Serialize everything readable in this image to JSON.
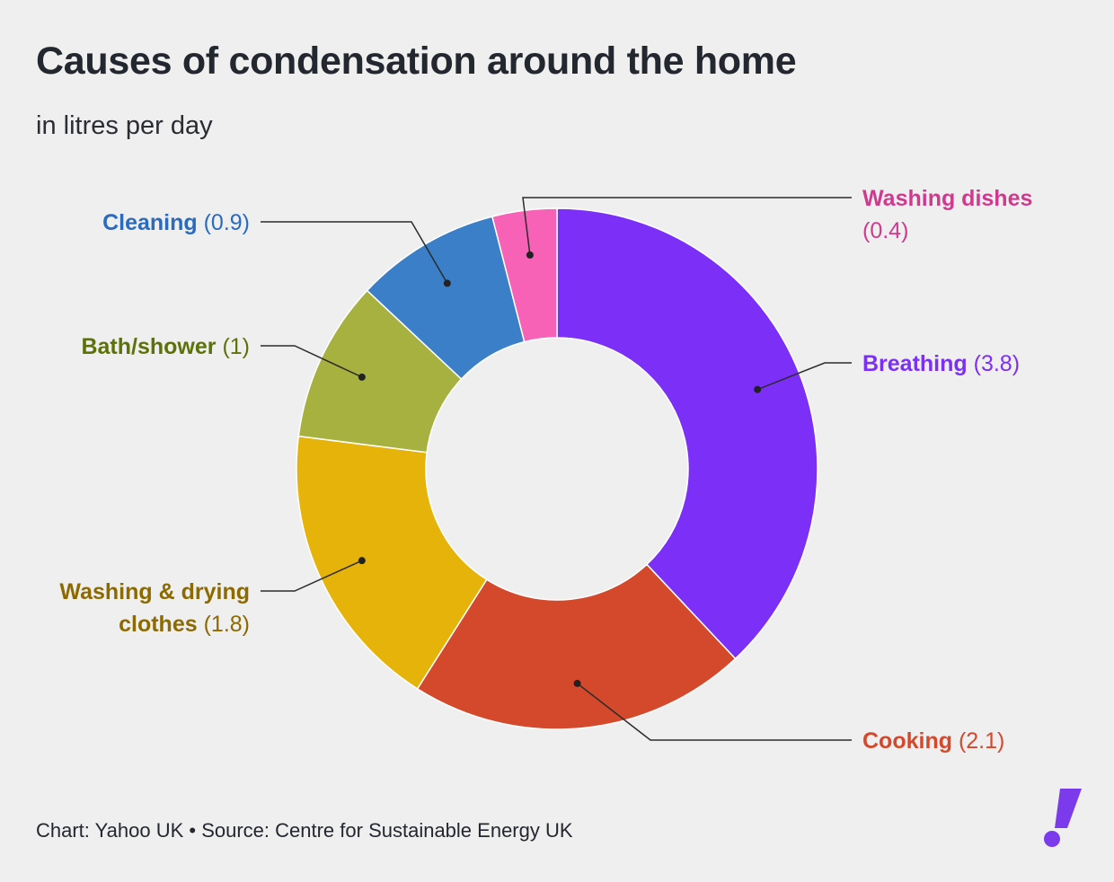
{
  "header": {
    "title": "Causes of condensation around the home",
    "subtitle": "in litres per day"
  },
  "footer": {
    "credit": "Chart: Yahoo UK • Source: Centre for Sustainable Energy UK"
  },
  "logo": {
    "icon": "exclamation-logo-icon",
    "color": "#7c3aed"
  },
  "chart_data": {
    "type": "pie",
    "variant": "donut",
    "unit": "litres per day",
    "slices": [
      {
        "name": "Breathing",
        "value": 3.8,
        "value_label": "(3.8)",
        "color": "#7b2ff7",
        "label_color": "#7b2ff7"
      },
      {
        "name": "Cooking",
        "value": 2.1,
        "value_label": "(2.1)",
        "color": "#d4492c",
        "label_color": "#d4492c"
      },
      {
        "name": "Washing & drying clothes",
        "name_lines": [
          "Washing & drying",
          "clothes"
        ],
        "value": 1.8,
        "value_label": "(1.8)",
        "color": "#e6b30b",
        "label_color": "#8c6a00"
      },
      {
        "name": "Bath/shower",
        "value": 1,
        "value_label": "(1)",
        "color": "#a6b13f",
        "label_color": "#5b7208"
      },
      {
        "name": "Cleaning",
        "value": 0.9,
        "value_label": "(0.9)",
        "color": "#3a7fc8",
        "label_color": "#2a6bbf"
      },
      {
        "name": "Washing dishes",
        "value": 0.4,
        "value_label": "(0.4)",
        "color": "#f761b6",
        "label_color": "#cf3a8f"
      }
    ],
    "legend": "none",
    "start_angle": "12 o'clock",
    "direction": "clockwise"
  }
}
